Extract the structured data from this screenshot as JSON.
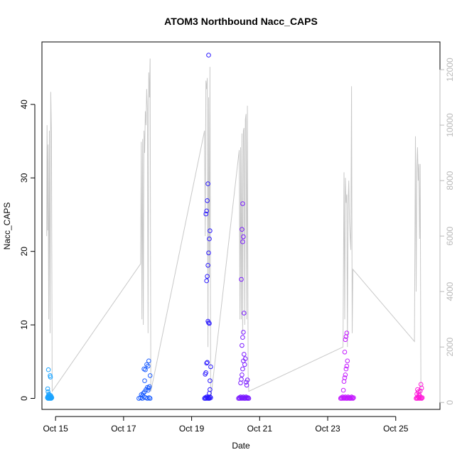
{
  "chart_data": {
    "type": "scatter",
    "title": "ATOM3 Northbound Nacc_CAPS",
    "xlabel": "Date",
    "ylabel": "Nacc_CAPS",
    "xlim": [
      14.6,
      26.3
    ],
    "ylim": [
      -1.5,
      48.5
    ],
    "x_ticks": [
      {
        "value": 15,
        "label": "Oct 15"
      },
      {
        "value": 17,
        "label": "Oct 17"
      },
      {
        "value": 19,
        "label": "Oct 19"
      },
      {
        "value": 21,
        "label": "Oct 21"
      },
      {
        "value": 23,
        "label": "Oct 23"
      },
      {
        "value": 25,
        "label": "Oct 25"
      }
    ],
    "y_ticks": [
      0,
      10,
      20,
      30,
      40
    ],
    "right_axis": {
      "ylim": [
        -250,
        13000
      ],
      "ticks": [
        0,
        2000,
        4000,
        6000,
        8000,
        10000,
        12000
      ],
      "color": "#b8b8b8"
    },
    "grid": false,
    "gray_line": {
      "color": "#c8c8c8",
      "points": [
        [
          14.74,
          6000
        ],
        [
          14.75,
          10000
        ],
        [
          14.77,
          6200
        ],
        [
          14.78,
          9300
        ],
        [
          14.8,
          3000
        ],
        [
          14.82,
          9800
        ],
        [
          14.84,
          2500
        ],
        [
          14.86,
          11200
        ],
        [
          14.88,
          9700
        ],
        [
          14.9,
          400
        ],
        [
          17.5,
          5000
        ],
        [
          17.52,
          9400
        ],
        [
          17.54,
          3000
        ],
        [
          17.56,
          9500
        ],
        [
          17.58,
          2800
        ],
        [
          17.6,
          9800
        ],
        [
          17.62,
          9000
        ],
        [
          17.64,
          10500
        ],
        [
          17.66,
          10000
        ],
        [
          17.68,
          11300
        ],
        [
          17.7,
          10600
        ],
        [
          17.72,
          2500
        ],
        [
          17.74,
          11900
        ],
        [
          17.76,
          11000
        ],
        [
          17.78,
          12400
        ],
        [
          17.8,
          400
        ],
        [
          19.38,
          9800
        ],
        [
          19.4,
          6000
        ],
        [
          19.42,
          11600
        ],
        [
          19.44,
          11300
        ],
        [
          19.46,
          11700
        ],
        [
          19.48,
          2000
        ],
        [
          19.5,
          11000
        ],
        [
          19.52,
          4500
        ],
        [
          19.54,
          12100
        ],
        [
          19.56,
          100
        ],
        [
          20.4,
          9100
        ],
        [
          20.42,
          3000
        ],
        [
          20.44,
          9200
        ],
        [
          20.46,
          3000
        ],
        [
          20.48,
          9700
        ],
        [
          20.5,
          2500
        ],
        [
          20.52,
          9800
        ],
        [
          20.54,
          9900
        ],
        [
          20.56,
          2800
        ],
        [
          20.58,
          10200
        ],
        [
          20.6,
          10400
        ],
        [
          20.62,
          3000
        ],
        [
          20.64,
          10700
        ],
        [
          20.66,
          1000
        ],
        [
          20.68,
          400
        ],
        [
          23.45,
          2000
        ],
        [
          23.48,
          8300
        ],
        [
          23.5,
          3000
        ],
        [
          23.52,
          8100
        ],
        [
          23.54,
          7200
        ],
        [
          23.56,
          7500
        ],
        [
          23.58,
          2000
        ],
        [
          23.6,
          7200
        ],
        [
          23.62,
          8000
        ],
        [
          23.64,
          6500
        ],
        [
          23.66,
          6000
        ],
        [
          23.68,
          5500
        ],
        [
          23.7,
          11400
        ],
        [
          23.72,
          2500
        ],
        [
          23.74,
          4800
        ],
        [
          25.55,
          2200
        ],
        [
          25.58,
          9600
        ],
        [
          25.6,
          4000
        ],
        [
          25.62,
          8500
        ],
        [
          25.64,
          9200
        ],
        [
          25.66,
          8000
        ],
        [
          25.68,
          8600
        ],
        [
          25.7,
          5900
        ],
        [
          25.72,
          8600
        ],
        [
          25.74,
          300
        ]
      ]
    },
    "series": [
      {
        "color": "#1aa3ff",
        "x": [
          14.76,
          14.77,
          14.78,
          14.78,
          14.79,
          14.8,
          14.81,
          14.82,
          14.83,
          14.84,
          14.85,
          14.86,
          14.87,
          14.88,
          14.89,
          14.79,
          14.84,
          14.85,
          14.77,
          14.78,
          14.8,
          14.82,
          14.86
        ],
        "y": [
          0.1,
          0.2,
          0.0,
          0.3,
          0.1,
          0.2,
          0.0,
          0.1,
          0.3,
          0.0,
          0.2,
          0.1,
          0.0,
          0.2,
          0.1,
          3.9,
          3.1,
          2.9,
          1.3,
          0.9,
          0.6,
          0.5,
          0.4
        ]
      },
      {
        "color": "#1a5cff",
        "x": [
          17.45,
          17.5,
          17.55,
          17.6,
          17.65,
          17.7,
          17.75,
          17.78,
          17.52,
          17.58,
          17.62,
          17.66,
          17.7,
          17.72,
          17.74,
          17.76,
          17.6,
          17.64,
          17.68,
          17.72,
          17.78,
          17.74,
          17.62,
          17.56
        ],
        "y": [
          0.0,
          0.1,
          0.0,
          0.2,
          0.1,
          0.0,
          0.1,
          0.0,
          0.5,
          0.7,
          0.9,
          1.2,
          1.5,
          1.1,
          1.4,
          1.6,
          4.0,
          3.9,
          4.6,
          4.4,
          3.1,
          5.1,
          2.4,
          0.4
        ]
      },
      {
        "color": "#2b1aff",
        "x": [
          19.38,
          19.4,
          19.42,
          19.44,
          19.46,
          19.48,
          19.5,
          19.52,
          19.54,
          19.56,
          19.4,
          19.42,
          19.44,
          19.46,
          19.48,
          19.5,
          19.52,
          19.54,
          19.44,
          19.46,
          19.48,
          19.5,
          19.52,
          19.54,
          19.42,
          19.44,
          19.46,
          19.48,
          19.5,
          19.52,
          19.54,
          19.56
        ],
        "y": [
          0.0,
          0.1,
          0.0,
          0.2,
          0.1,
          0.0,
          0.1,
          0.0,
          0.2,
          0.1,
          3.3,
          3.5,
          4.8,
          4.9,
          10.5,
          10.3,
          10.2,
          2.4,
          16.0,
          16.6,
          18.1,
          19.8,
          21.7,
          22.8,
          25.1,
          25.5,
          26.9,
          29.2,
          46.7,
          0.7,
          1.2,
          4.3
        ]
      },
      {
        "color": "#7a1aff",
        "x": [
          20.38,
          20.4,
          20.42,
          20.44,
          20.46,
          20.48,
          20.5,
          20.52,
          20.54,
          20.56,
          20.58,
          20.6,
          20.62,
          20.64,
          20.66,
          20.68,
          20.44,
          20.46,
          20.48,
          20.5,
          20.52,
          20.54,
          20.56,
          20.58,
          20.6,
          20.62,
          20.64,
          20.48,
          20.5,
          20.52,
          20.54,
          20.46,
          20.5,
          20.52,
          20.48,
          20.5
        ],
        "y": [
          0.0,
          0.1,
          0.0,
          0.2,
          0.1,
          0.0,
          0.1,
          0.2,
          0.0,
          0.1,
          0.0,
          0.2,
          0.1,
          0.0,
          0.1,
          0.0,
          2.1,
          2.6,
          3.2,
          4.0,
          5.1,
          6.0,
          4.6,
          5.4,
          2.2,
          1.8,
          2.5,
          7.2,
          8.3,
          9.0,
          11.6,
          16.2,
          21.3,
          22.0,
          23.0,
          26.5
        ]
      },
      {
        "color": "#c41aff",
        "x": [
          23.38,
          23.4,
          23.42,
          23.44,
          23.46,
          23.48,
          23.5,
          23.52,
          23.54,
          23.56,
          23.58,
          23.6,
          23.62,
          23.64,
          23.66,
          23.68,
          23.7,
          23.72,
          23.74,
          23.76,
          23.46,
          23.48,
          23.5,
          23.52,
          23.54,
          23.56,
          23.58,
          23.5,
          23.52,
          23.54,
          23.56
        ],
        "y": [
          0.0,
          0.1,
          0.0,
          0.2,
          0.1,
          0.0,
          0.1,
          0.2,
          0.0,
          0.1,
          0.0,
          0.2,
          0.1,
          0.0,
          0.1,
          0.0,
          0.2,
          0.1,
          0.0,
          0.1,
          1.1,
          2.3,
          2.8,
          3.2,
          4.0,
          4.4,
          5.1,
          6.3,
          8.0,
          8.4,
          8.9
        ]
      },
      {
        "color": "#ff1ad9",
        "x": [
          25.6,
          25.62,
          25.64,
          25.66,
          25.68,
          25.7,
          25.72,
          25.74,
          25.76,
          25.78,
          25.62,
          25.64,
          25.66,
          25.68,
          25.7,
          25.72,
          25.74,
          25.76
        ],
        "y": [
          0.0,
          0.1,
          0.0,
          0.2,
          0.1,
          0.0,
          0.2,
          0.1,
          0.0,
          0.1,
          0.6,
          1.2,
          0.9,
          0.5,
          0.4,
          1.0,
          1.9,
          1.4
        ]
      }
    ]
  }
}
